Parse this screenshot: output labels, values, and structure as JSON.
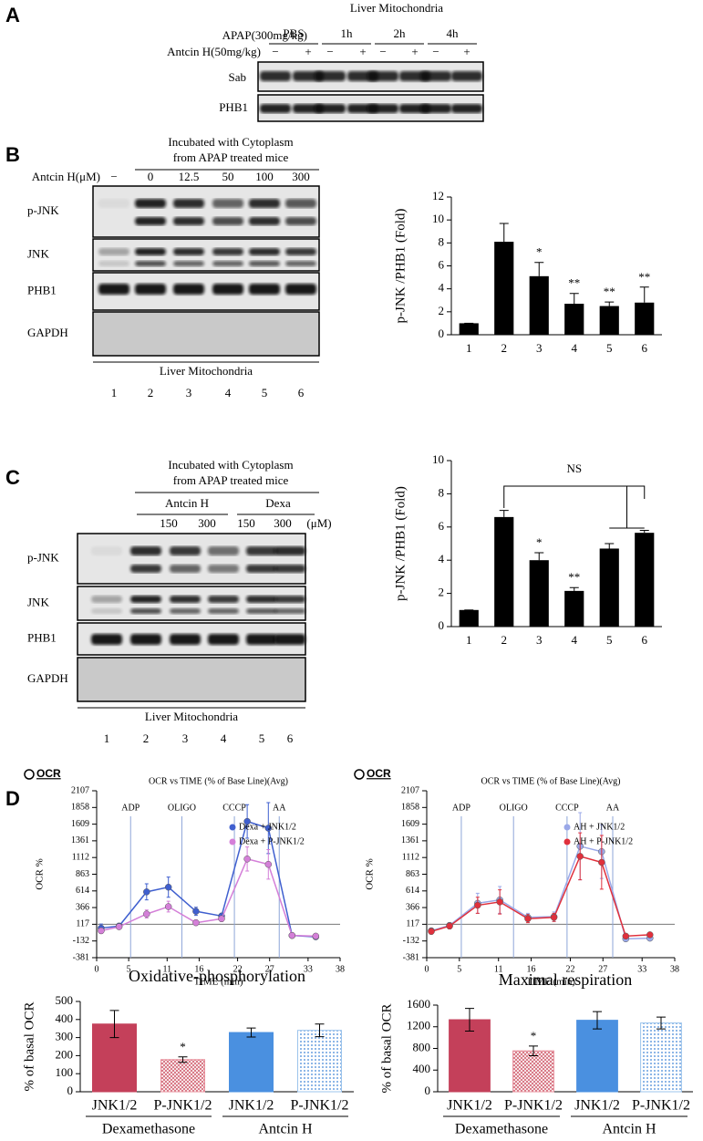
{
  "panels": {
    "A": {
      "letter": "A",
      "title": "Liver Mitochondria",
      "treatment": "APAP(300mg/kg)",
      "groups": [
        "PBS",
        "1h",
        "2h",
        "4h"
      ],
      "cotreatment": "Antcin H(50mg/kg)",
      "signs": [
        "−",
        "+",
        "−",
        "+",
        "−",
        "+",
        "−",
        "+"
      ],
      "rows": [
        "Sab",
        "PHB1"
      ]
    },
    "B": {
      "letter": "B",
      "header": [
        "Incubated with Cytoplasm",
        "from APAP treated mice"
      ],
      "dose_label": "Antcin H(μM)",
      "doses": [
        "−",
        "0",
        "12.5",
        "50",
        "100",
        "300"
      ],
      "rows": [
        "p-JNK",
        "JNK",
        "PHB1",
        "GAPDH"
      ],
      "footer": "Liver Mitochondria",
      "lanes": [
        "1",
        "2",
        "3",
        "4",
        "5",
        "6"
      ]
    },
    "C": {
      "letter": "C",
      "header": [
        "Incubated with Cytoplasm",
        "from APAP treated mice"
      ],
      "groups": [
        "Antcin H",
        "Dexa"
      ],
      "doses": [
        "150",
        "300",
        "150",
        "300"
      ],
      "unit": "(μM)",
      "rows": [
        "p-JNK",
        "JNK",
        "PHB1",
        "GAPDH"
      ],
      "footer": "Liver Mitochondria",
      "lanes": [
        "1",
        "2",
        "3",
        "4",
        "5",
        "6"
      ]
    },
    "D": {
      "letter": "D"
    }
  },
  "chart_data": [
    {
      "type": "bar",
      "ylabel": "p-JNK /PHB1 (Fold)",
      "categories": [
        "1",
        "2",
        "3",
        "4",
        "5",
        "6"
      ],
      "values": [
        1,
        8.1,
        5.1,
        2.7,
        2.5,
        2.8
      ],
      "errors": [
        0,
        1.6,
        1.2,
        0.9,
        0.35,
        1.35
      ],
      "annotations": [
        null,
        null,
        "*",
        "**",
        "**",
        "**"
      ],
      "color": "#000000",
      "ylim": [
        0,
        12
      ],
      "yticks": [
        0,
        2,
        4,
        6,
        8,
        10,
        12
      ]
    },
    {
      "type": "bar",
      "ylabel": "p-JNK /PHB1 (Fold)",
      "categories": [
        "1",
        "2",
        "3",
        "4",
        "5",
        "6"
      ],
      "values": [
        1,
        6.6,
        4.0,
        2.15,
        4.7,
        5.65
      ],
      "errors": [
        0,
        0.4,
        0.45,
        0.2,
        0.3,
        0.15
      ],
      "annotations": [
        null,
        null,
        "*",
        "**",
        null,
        null
      ],
      "bracket_label": "NS",
      "color": "#000000",
      "ylim": [
        0,
        10
      ],
      "yticks": [
        0,
        2,
        4,
        6,
        8,
        10
      ]
    },
    {
      "type": "line",
      "label": "OCR",
      "title": "OCR vs TIME (% of Base Line)(Avg)",
      "ylabel": "OCR %",
      "xlabel": "TIME (min)",
      "markers": [
        {
          "label": "ADP",
          "x": 5.3
        },
        {
          "label": "OLIGO",
          "x": 13.3
        },
        {
          "label": "CCCP",
          "x": 21.5
        },
        {
          "label": "AA",
          "x": 28.5
        }
      ],
      "hline": 117,
      "x": [
        0.7,
        3.5,
        7.8,
        11.2,
        15.5,
        19.5,
        23.5,
        26.8,
        30.5,
        34.2
      ],
      "series": [
        {
          "name": "Dexa + JNK1/2",
          "color": "#3f5fcf",
          "values": [
            60,
            90,
            600,
            670,
            310,
            240,
            1650,
            1550,
            -50,
            -70
          ],
          "errors": [
            60,
            40,
            120,
            150,
            60,
            40,
            250,
            380,
            20,
            20
          ]
        },
        {
          "name": "Dexa + P-JNK1/2",
          "color": "#d47fd8",
          "values": [
            20,
            80,
            270,
            380,
            140,
            200,
            1090,
            1010,
            -50,
            -60
          ],
          "errors": [
            40,
            30,
            60,
            80,
            40,
            40,
            180,
            220,
            20,
            20
          ]
        }
      ],
      "xlim": [
        0,
        38
      ],
      "xticks": [
        0,
        5,
        11,
        16,
        22,
        27,
        33,
        38
      ],
      "ylim": [
        -381,
        2107
      ],
      "yticks": [
        -381,
        -132,
        117,
        366,
        614,
        863,
        1112,
        1361,
        1609,
        1858,
        2107
      ],
      "legend": "upper right"
    },
    {
      "type": "line",
      "label": "OCR",
      "title": "OCR vs TIME (% of Base Line)(Avg)",
      "ylabel": "OCR %",
      "xlabel": "TIME (min)",
      "markers": [
        {
          "label": "ADP",
          "x": 5.3
        },
        {
          "label": "OLIGO",
          "x": 13.3
        },
        {
          "label": "CCCP",
          "x": 21.5
        },
        {
          "label": "AA",
          "x": 28.5
        }
      ],
      "hline": 117,
      "x": [
        0.7,
        3.5,
        7.8,
        11.2,
        15.5,
        19.5,
        23.5,
        26.8,
        30.5,
        34.2
      ],
      "series": [
        {
          "name": "AH + JNK1/2",
          "color": "#9aa8e8",
          "values": [
            20,
            100,
            430,
            480,
            220,
            230,
            1280,
            1200,
            -100,
            -90
          ],
          "errors": [
            40,
            40,
            150,
            200,
            60,
            70,
            500,
            400,
            30,
            30
          ]
        },
        {
          "name": "AH + P-JNK1/2",
          "color": "#e0303c",
          "values": [
            10,
            90,
            400,
            450,
            200,
            220,
            1130,
            1040,
            -60,
            -40
          ],
          "errors": [
            40,
            40,
            120,
            180,
            60,
            60,
            350,
            400,
            30,
            30
          ]
        }
      ],
      "xlim": [
        0,
        38
      ],
      "xticks": [
        0,
        5,
        11,
        16,
        22,
        27,
        33,
        38
      ],
      "ylim": [
        -381,
        2107
      ],
      "yticks": [
        -381,
        -132,
        117,
        366,
        614,
        863,
        1112,
        1361,
        1609,
        1858,
        2107
      ],
      "legend": "upper right"
    },
    {
      "type": "bar",
      "title": "Oxidative-phosphorylation",
      "ylabel": "% of basal OCR",
      "categories": [
        "JNK1/2",
        "P-JNK1/2",
        "JNK1/2",
        "P-JNK1/2"
      ],
      "group_labels": [
        "Dexamethasone",
        "Antcin H"
      ],
      "values": [
        375,
        178,
        328,
        340
      ],
      "errors": [
        75,
        15,
        25,
        35
      ],
      "annotations": [
        null,
        "*",
        null,
        null
      ],
      "colors": [
        "#c4405a",
        "#e8909c",
        "#4a90e0",
        "#9cc4ec"
      ],
      "patterns": [
        "solid",
        "hatch",
        "solid",
        "dots"
      ],
      "ylim": [
        0,
        500
      ],
      "yticks": [
        0,
        100,
        200,
        300,
        400,
        500
      ]
    },
    {
      "type": "bar",
      "title": "Maximal respiration",
      "ylabel": "% of basal OCR",
      "categories": [
        "JNK1/2",
        "P-JNK1/2",
        "JNK1/2",
        "P-JNK1/2"
      ],
      "group_labels": [
        "Dexamethasone",
        "Antcin H"
      ],
      "values": [
        1330,
        755,
        1320,
        1270
      ],
      "errors": [
        210,
        90,
        160,
        110
      ],
      "annotations": [
        null,
        "*",
        null,
        null
      ],
      "colors": [
        "#c4405a",
        "#e8909c",
        "#4a90e0",
        "#9cc4ec"
      ],
      "patterns": [
        "solid",
        "hatch",
        "solid",
        "dots"
      ],
      "ylim": [
        0,
        1600
      ],
      "yticks": [
        0,
        400,
        800,
        1200,
        1600
      ]
    }
  ]
}
